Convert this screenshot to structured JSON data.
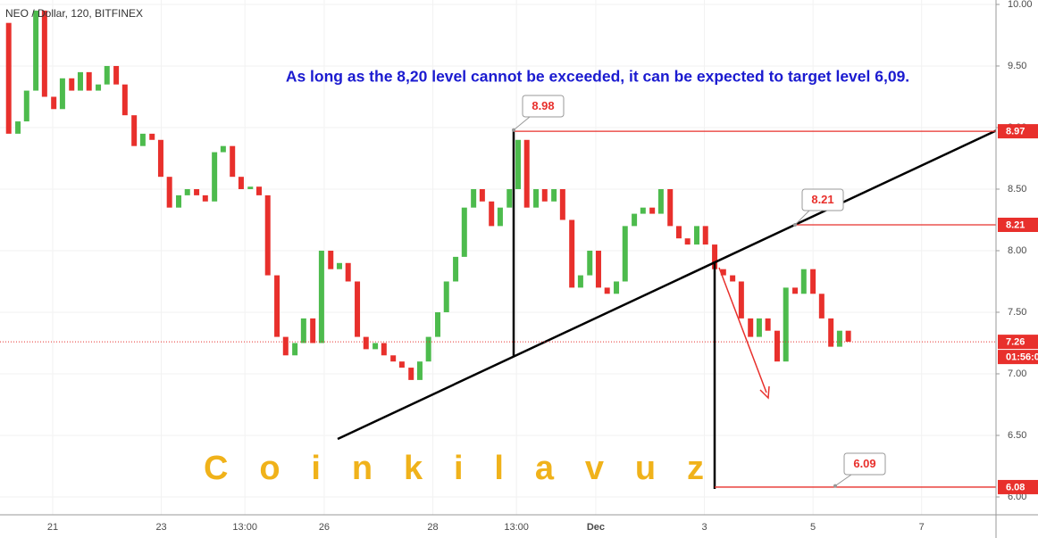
{
  "chart_data": {
    "type": "candlestick",
    "title": "NEO / Dollar, 120, BITFINEX",
    "annotation": "As long as the 8,20 level cannot be exceeded, it can be expected to target level 6,09.",
    "watermark": "C o i n k i l a v u z",
    "up_color": "#4dbb4d",
    "down_color": "#e8302c",
    "xlim": [
      20.03,
      38.37
    ],
    "ylim": [
      5.855,
      10.036
    ],
    "yticks": [
      {
        "value": 6,
        "label": "6.00"
      },
      {
        "value": 6.5,
        "label": "6.50"
      },
      {
        "value": 7,
        "label": "7.00"
      },
      {
        "value": 7.5,
        "label": "7.50"
      },
      {
        "value": 8,
        "label": "8.00"
      },
      {
        "value": 8.5,
        "label": "8.50"
      },
      {
        "value": 9,
        "label": "9.00"
      },
      {
        "value": 9.5,
        "label": "9.50"
      },
      {
        "value": 10,
        "label": "10.00"
      }
    ],
    "xticks": [
      21,
      23,
      {
        "value": 24.54,
        "label": "13:00"
      },
      26,
      28,
      {
        "value": 29.54,
        "label": "13:00"
      },
      {
        "value": 31,
        "label": "Dec"
      },
      {
        "value": 33,
        "label": "3"
      },
      {
        "value": 35,
        "label": "5"
      },
      {
        "value": 37,
        "label": "7"
      }
    ],
    "last_price": 7.26,
    "countdown": "01:56:0",
    "price_lines": [
      8.97,
      8.21,
      6.08
    ],
    "callouts": [
      8.98,
      8.21,
      6.09
    ],
    "x": [
      20.19,
      20.36,
      20.52,
      20.69,
      20.85,
      21.02,
      21.18,
      21.35,
      21.51,
      21.67,
      21.84,
      22.0,
      22.17,
      22.33,
      22.5,
      22.66,
      22.83,
      22.99,
      23.15,
      23.32,
      23.48,
      23.65,
      23.81,
      23.98,
      24.14,
      24.31,
      24.47,
      24.64,
      24.8,
      24.96,
      25.13,
      25.29,
      25.46,
      25.62,
      25.79,
      25.95,
      26.12,
      26.28,
      26.44,
      26.61,
      26.77,
      26.94,
      27.1,
      27.27,
      27.43,
      27.6,
      27.76,
      27.92,
      28.09,
      28.25,
      28.42,
      28.58,
      28.75,
      28.91,
      29.08,
      29.24,
      29.41,
      29.57,
      29.73,
      29.9,
      30.06,
      30.23,
      30.39,
      30.56,
      30.72,
      30.89,
      31.05,
      31.21,
      31.38,
      31.54,
      31.71,
      31.87,
      32.04,
      32.2,
      32.37,
      32.53,
      32.69,
      32.86,
      33.02,
      33.19,
      33.35,
      33.52,
      33.68,
      33.85,
      34.01,
      34.17,
      34.34,
      34.5,
      34.67,
      34.83,
      35.0,
      35.16,
      35.33,
      35.49,
      35.65
    ],
    "open": [
      9.85,
      8.95,
      9.05,
      9.3,
      9.95,
      9.25,
      9.15,
      9.4,
      9.3,
      9.45,
      9.3,
      9.35,
      9.5,
      9.35,
      9.1,
      8.85,
      8.95,
      8.9,
      8.6,
      8.35,
      8.45,
      8.5,
      8.45,
      8.4,
      8.8,
      8.85,
      8.6,
      8.5,
      8.52,
      8.45,
      7.8,
      7.3,
      7.15,
      7.25,
      7.45,
      7.25,
      8.0,
      7.85,
      7.9,
      7.75,
      7.3,
      7.2,
      7.25,
      7.15,
      7.1,
      7.05,
      6.95,
      7.1,
      7.3,
      7.5,
      7.75,
      7.95,
      8.35,
      8.5,
      8.4,
      8.2,
      8.35,
      8.5,
      8.9,
      8.35,
      8.5,
      8.4,
      8.5,
      8.25,
      7.7,
      7.8,
      8.0,
      7.7,
      7.65,
      7.75,
      8.2,
      8.3,
      8.35,
      8.3,
      8.5,
      8.2,
      8.1,
      8.05,
      8.2,
      8.05,
      7.85,
      7.8,
      7.75,
      7.45,
      7.3,
      7.45,
      7.35,
      7.1,
      7.7,
      7.65,
      7.85,
      7.65,
      7.45,
      7.22,
      7.35
    ],
    "close": [
      8.95,
      9.05,
      9.3,
      9.95,
      9.25,
      9.15,
      9.4,
      9.3,
      9.45,
      9.3,
      9.35,
      9.5,
      9.35,
      9.1,
      8.85,
      8.95,
      8.9,
      8.6,
      8.35,
      8.45,
      8.5,
      8.45,
      8.4,
      8.8,
      8.85,
      8.6,
      8.5,
      8.52,
      8.45,
      7.8,
      7.3,
      7.15,
      7.25,
      7.45,
      7.25,
      8.0,
      7.85,
      7.9,
      7.75,
      7.3,
      7.2,
      7.25,
      7.15,
      7.1,
      7.05,
      6.95,
      7.1,
      7.3,
      7.5,
      7.75,
      7.95,
      8.35,
      8.5,
      8.4,
      8.2,
      8.35,
      8.5,
      8.9,
      8.35,
      8.5,
      8.4,
      8.5,
      8.25,
      7.7,
      7.8,
      8.0,
      7.7,
      7.65,
      7.75,
      8.2,
      8.3,
      8.35,
      8.3,
      8.5,
      8.2,
      8.1,
      8.05,
      8.2,
      8.05,
      7.85,
      7.8,
      7.75,
      7.45,
      7.3,
      7.45,
      7.35,
      7.1,
      7.7,
      7.65,
      7.85,
      7.65,
      7.45,
      7.22,
      7.35,
      7.26
    ]
  }
}
